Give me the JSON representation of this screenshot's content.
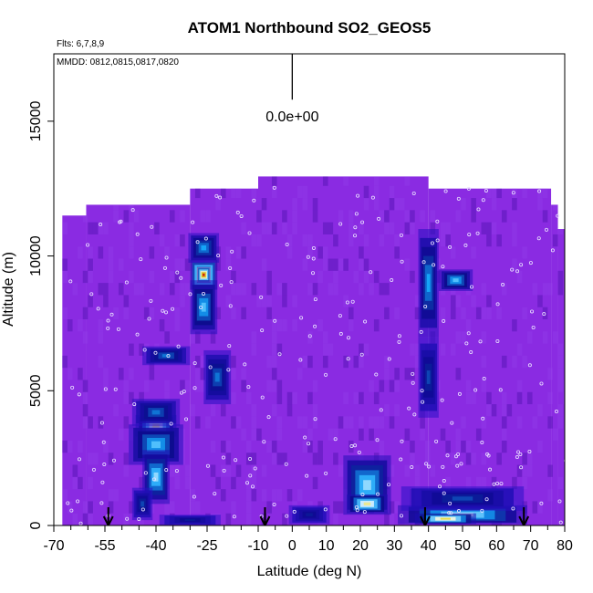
{
  "chart_data": {
    "type": "heatmap",
    "title": "ATOM1 Northbound SO2_GEOS5",
    "flights_note": "Flts: 6,7,8,9",
    "dates_note": "MMDD: 0812,0815,0817,0820",
    "xlabel": "Latitude (deg N)",
    "ylabel": "Altitude (m)",
    "xlim": [
      -70,
      80
    ],
    "ylim": [
      0,
      17500
    ],
    "x_ticks": [
      -70,
      -55,
      -40,
      -25,
      -10,
      0,
      10,
      20,
      30,
      40,
      50,
      60,
      70,
      80
    ],
    "x_tick_labels": [
      "-70",
      "-55",
      "-40",
      "-25",
      "-10",
      "0",
      "10",
      "20",
      "30",
      "40",
      "50",
      "60",
      "70",
      "80"
    ],
    "x_minor_ticks": [
      -65,
      -60,
      -50,
      -45,
      -35,
      -30,
      -20,
      -15,
      -5,
      5,
      15,
      25,
      35,
      45,
      55,
      65,
      75
    ],
    "y_ticks": [
      0,
      5000,
      10000,
      15000
    ],
    "y_tick_labels": [
      "0",
      "5000",
      "10000",
      "15000"
    ],
    "scale_marker": {
      "x": 0,
      "y_range": [
        15800,
        17500
      ],
      "label": "0.0e+00"
    },
    "arrows_latitude": [
      -54,
      -8,
      39,
      68
    ],
    "colormap": [
      "#7b1fe6",
      "#2a10c6",
      "#0a0a8a",
      "#16b0ff",
      "#ffffff",
      "#e0d000",
      "#c81010"
    ],
    "background_color": "#8a2be2",
    "curtain_top_profile": [
      {
        "x": [
          -67.5,
          -60.5
        ],
        "top": 11500
      },
      {
        "x": [
          -60.5,
          -30
        ],
        "top": 11900
      },
      {
        "x": [
          -30,
          -10
        ],
        "top": 12500
      },
      {
        "x": [
          -10,
          40
        ],
        "top": 12950
      },
      {
        "x": [
          40,
          76
        ],
        "top": 12500
      },
      {
        "x": [
          76,
          78
        ],
        "top": 11900
      },
      {
        "x": [
          78,
          80
        ],
        "top": 11000
      },
      {
        "x": [
          80,
          81.5
        ],
        "top": 7500
      }
    ],
    "enhancements": [
      {
        "x": -26,
        "y": 9300,
        "w": 8,
        "h": 1100,
        "level": 0.95
      },
      {
        "x": -26,
        "y": 9300,
        "w": 4,
        "h": 600,
        "level": 1.0
      },
      {
        "x": -26,
        "y": 8100,
        "w": 8,
        "h": 2000,
        "level": 0.55
      },
      {
        "x": -26,
        "y": 10300,
        "w": 9,
        "h": 1100,
        "level": 0.5
      },
      {
        "x": -40,
        "y": 3700,
        "w": 12,
        "h": 800,
        "level": 0.75
      },
      {
        "x": -40,
        "y": 3000,
        "w": 16,
        "h": 1500,
        "level": 0.55
      },
      {
        "x": -40,
        "y": 1800,
        "w": 8,
        "h": 2000,
        "level": 0.6
      },
      {
        "x": -40,
        "y": 4200,
        "w": 14,
        "h": 1000,
        "level": 0.45
      },
      {
        "x": -37,
        "y": 6300,
        "w": 14,
        "h": 700,
        "level": 0.45
      },
      {
        "x": -22,
        "y": 5500,
        "w": 8,
        "h": 2000,
        "level": 0.45
      },
      {
        "x": -44,
        "y": 800,
        "w": 6,
        "h": 1200,
        "level": 0.4
      },
      {
        "x": 22,
        "y": 1500,
        "w": 14,
        "h": 2200,
        "level": 0.6
      },
      {
        "x": 22,
        "y": 800,
        "w": 12,
        "h": 700,
        "level": 0.75
      },
      {
        "x": 40,
        "y": 9000,
        "w": 6,
        "h": 4000,
        "level": 0.5
      },
      {
        "x": 48,
        "y": 9100,
        "w": 10,
        "h": 800,
        "level": 0.55
      },
      {
        "x": 40,
        "y": 5500,
        "w": 6,
        "h": 3000,
        "level": 0.4
      },
      {
        "x": 50,
        "y": 400,
        "w": 38,
        "h": 700,
        "level": 0.65
      },
      {
        "x": 45,
        "y": 250,
        "w": 18,
        "h": 400,
        "level": 0.8
      },
      {
        "x": 50,
        "y": 1000,
        "w": 36,
        "h": 900,
        "level": 0.4
      },
      {
        "x": 5,
        "y": 400,
        "w": 12,
        "h": 700,
        "level": 0.35
      },
      {
        "x": -30,
        "y": 200,
        "w": 18,
        "h": 400,
        "level": 0.35
      }
    ]
  }
}
